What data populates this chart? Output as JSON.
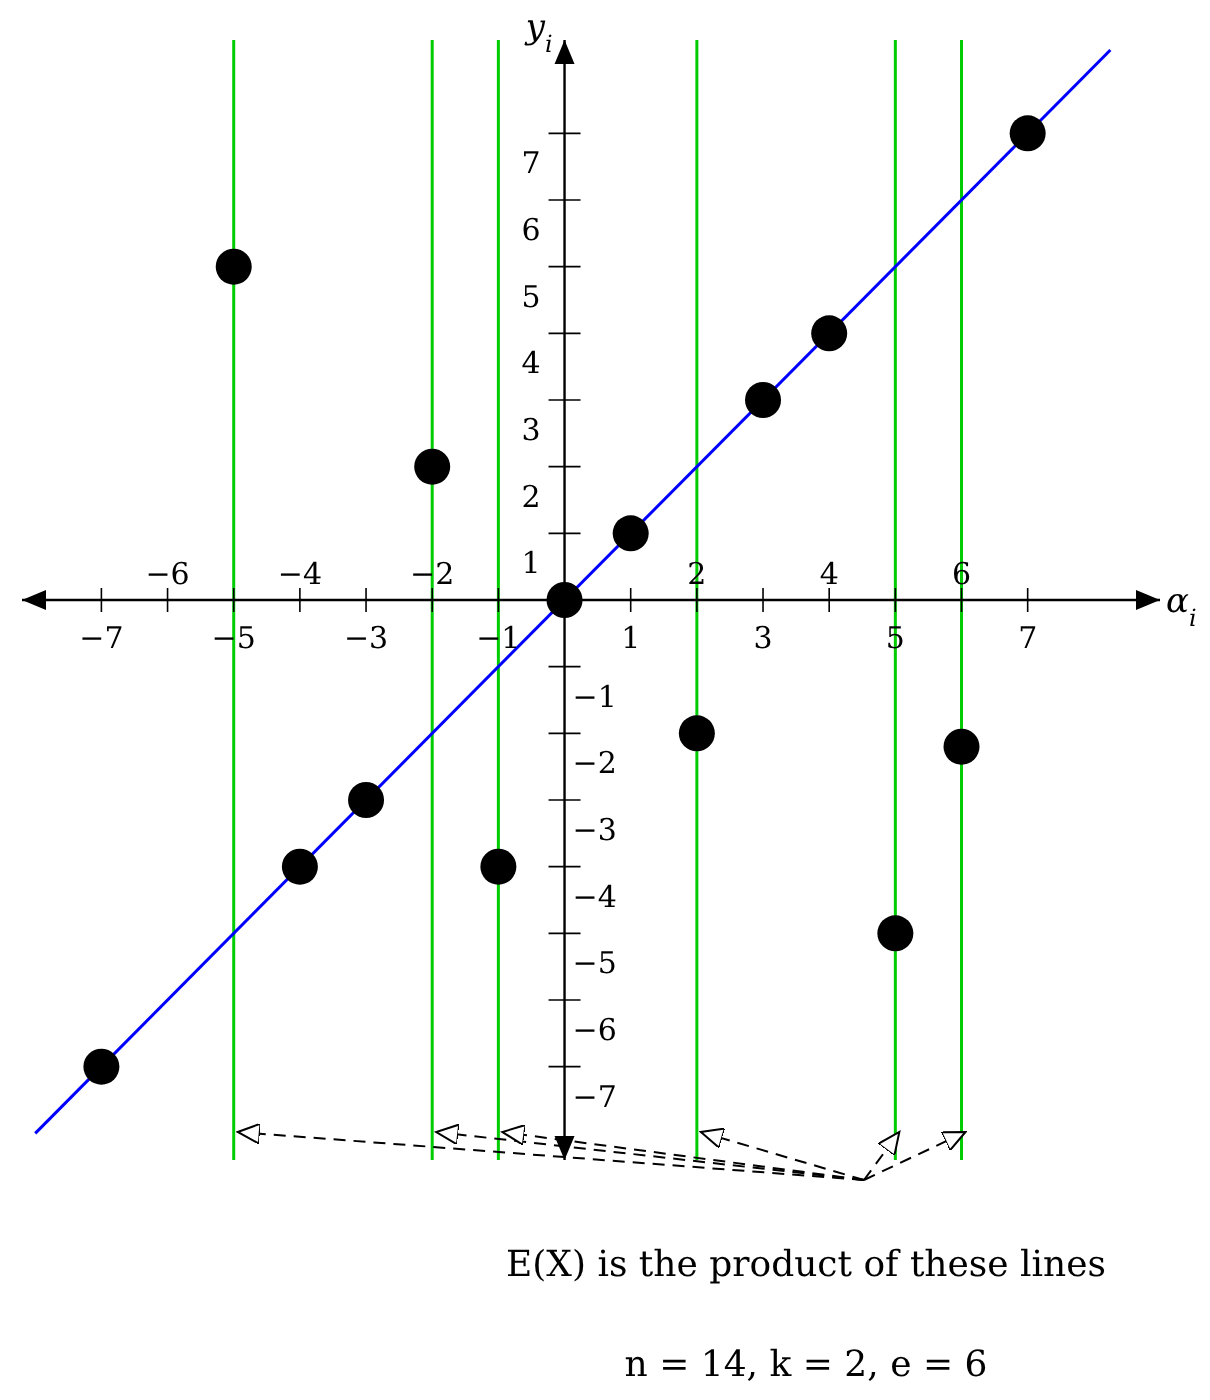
{
  "chart_data": {
    "type": "scatter",
    "xlabel": "α$_{i}$",
    "ylabel": "y$_{i}$",
    "x": [
      -7,
      -5,
      -4,
      -3,
      -2,
      -1,
      0,
      1,
      2,
      3,
      4,
      5,
      6,
      7
    ],
    "series": [
      {
        "type": "scatter",
        "color": "#000000",
        "marker": "circle",
        "values": [
          -7,
          5,
          -4,
          -3,
          2,
          -4,
          0,
          1,
          -2,
          3,
          4,
          -5,
          -2.2,
          7
        ]
      },
      {
        "type": "line",
        "color": "#0000ff",
        "line_style": "solid",
        "x": [
          -8,
          8.25
        ],
        "values": [
          -8,
          8.25
        ]
      }
    ],
    "xlim": [
      -8.2,
      9
    ],
    "ylim": [
      -8.4,
      8.4
    ],
    "xticks": [
      -7,
      -5,
      -3,
      -1,
      1,
      3,
      5,
      7
    ],
    "x2lim": [
      -8.2,
      9
    ],
    "x2ticks": [
      -6,
      -4,
      -2,
      2,
      4,
      6
    ],
    "yticks": [
      1,
      2,
      3,
      4,
      5,
      6,
      7
    ],
    "y2lim": [
      -8.4,
      8.4
    ],
    "y2ticks": [
      -7,
      -6,
      -5,
      -4,
      -3,
      -2,
      -1
    ],
    "ref_lines": [
      {
        "axis": "x",
        "value": -5,
        "color": "#00cc00"
      },
      {
        "axis": "x",
        "value": -2,
        "color": "#00cc00"
      },
      {
        "axis": "x",
        "value": -1,
        "color": "#00cc00"
      },
      {
        "axis": "x",
        "value": 2,
        "color": "#00cc00"
      },
      {
        "axis": "x",
        "value": 5,
        "color": "#00cc00"
      },
      {
        "axis": "x",
        "value": 6,
        "color": "#00cc00"
      }
    ],
    "annotations": [
      "E(X) is the product of these lines",
      "n = 14, k = 2, e = 6"
    ],
    "grid": false,
    "legend": false
  }
}
